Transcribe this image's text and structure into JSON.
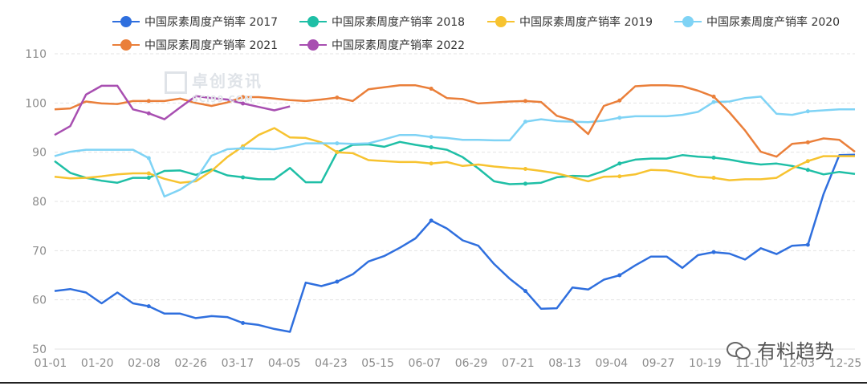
{
  "chart_data": {
    "type": "line",
    "ylim": [
      50,
      110
    ],
    "y_ticks": [
      "50",
      "60",
      "70",
      "80",
      "90",
      "100",
      "110"
    ],
    "x_tick_labels": [
      "01-01",
      "01-20",
      "02-08",
      "02-26",
      "03-17",
      "04-05",
      "04-23",
      "05-15",
      "06-07",
      "06-29",
      "07-21",
      "08-13",
      "09-04",
      "09-27",
      "10-19",
      "11-10",
      "12-03",
      "12-25"
    ],
    "grid": "horizontal dashed",
    "legend_position": "top",
    "series": [
      {
        "name": "中国尿素周度产销率 2017",
        "color": "#2f6fde",
        "values": [
          61.8,
          62.2,
          61.5,
          59.3,
          61.5,
          59.3,
          58.7,
          57.2,
          57.2,
          56.3,
          56.7,
          56.5,
          55.3,
          54.9,
          54.1,
          53.5,
          63.5,
          62.8,
          63.7,
          65.2,
          67.8,
          68.9,
          70.6,
          72.5,
          76.1,
          74.5,
          72.1,
          71.0,
          67.3,
          64.3,
          61.8,
          58.2,
          58.3,
          62.5,
          62.1,
          64.1,
          65.0,
          67.0,
          68.8,
          68.8,
          66.5,
          69.1,
          69.7,
          69.4,
          68.2,
          70.5,
          69.3,
          71.0,
          71.2,
          81.5,
          89.4,
          89.5
        ]
      },
      {
        "name": "中国尿素周度产销率 2018",
        "color": "#1fbfa6",
        "values": [
          88.2,
          85.8,
          84.8,
          84.2,
          83.8,
          84.8,
          84.8,
          86.2,
          86.3,
          85.4,
          86.5,
          85.3,
          84.9,
          84.5,
          84.5,
          86.8,
          83.9,
          83.9,
          90.0,
          91.5,
          91.6,
          91.1,
          92.1,
          91.5,
          91.0,
          90.5,
          89.0,
          86.7,
          84.1,
          83.5,
          83.6,
          83.8,
          84.9,
          85.2,
          85.1,
          86.2,
          87.7,
          88.5,
          88.7,
          88.7,
          89.4,
          89.1,
          88.9,
          88.5,
          87.9,
          87.5,
          87.7,
          87.2,
          86.4,
          85.5,
          86.0,
          85.6
        ]
      },
      {
        "name": "中国尿素周度产销率 2019",
        "color": "#f7c330",
        "values": [
          85.0,
          84.7,
          84.8,
          85.1,
          85.5,
          85.7,
          85.7,
          84.6,
          83.8,
          84.1,
          86.2,
          89.0,
          91.2,
          93.5,
          94.9,
          93.0,
          92.9,
          92.0,
          90.0,
          89.8,
          88.4,
          88.2,
          88.0,
          88.0,
          87.7,
          88.0,
          87.2,
          87.5,
          87.1,
          86.8,
          86.6,
          86.2,
          85.7,
          84.9,
          84.1,
          85.0,
          85.1,
          85.5,
          86.4,
          86.3,
          85.7,
          85.0,
          84.8,
          84.3,
          84.5,
          84.5,
          84.8,
          86.7,
          88.2,
          89.2,
          89.2,
          89.2
        ]
      },
      {
        "name": "中国尿素周度产销率 2020",
        "color": "#7fd3f5",
        "values": [
          89.2,
          90.1,
          90.5,
          90.5,
          90.5,
          90.5,
          88.8,
          81.0,
          82.4,
          84.5,
          89.3,
          90.6,
          90.8,
          90.7,
          90.6,
          91.1,
          91.8,
          91.8,
          91.8,
          91.7,
          91.8,
          92.6,
          93.5,
          93.5,
          93.1,
          92.9,
          92.5,
          92.5,
          92.4,
          92.4,
          96.2,
          96.7,
          96.3,
          96.2,
          96.1,
          96.4,
          97.0,
          97.3,
          97.3,
          97.3,
          97.6,
          98.2,
          100.2,
          100.3,
          101.0,
          101.3,
          97.8,
          97.6,
          98.3,
          98.5,
          98.7,
          98.7
        ]
      },
      {
        "name": "中国尿素周度产销率 2021",
        "color": "#ea7f3a",
        "values": [
          98.7,
          98.9,
          100.3,
          99.9,
          99.8,
          100.4,
          100.4,
          100.4,
          100.9,
          100.0,
          99.4,
          100.1,
          101.2,
          101.2,
          100.9,
          100.6,
          100.4,
          100.7,
          101.1,
          100.4,
          102.8,
          103.2,
          103.6,
          103.6,
          102.9,
          101.0,
          100.8,
          99.9,
          100.1,
          100.3,
          100.4,
          100.2,
          97.4,
          96.5,
          93.7,
          99.4,
          100.5,
          103.4,
          103.6,
          103.6,
          103.4,
          102.5,
          101.3,
          98.1,
          94.4,
          90.1,
          89.1,
          91.7,
          92.0,
          92.8,
          92.5,
          90.1
        ]
      },
      {
        "name": "中国尿素周度产销率 2022",
        "color": "#a84fb1",
        "values": [
          93.5,
          95.3,
          101.7,
          103.5,
          103.5,
          98.7,
          97.9,
          96.7,
          99.1,
          101.4,
          101.0,
          100.7,
          99.9,
          99.2,
          98.5,
          99.3
        ]
      }
    ]
  },
  "watermark": {
    "text": "卓创资讯",
    "subtext": "SCI99.COM"
  },
  "brand": {
    "text": "有料趋势"
  }
}
